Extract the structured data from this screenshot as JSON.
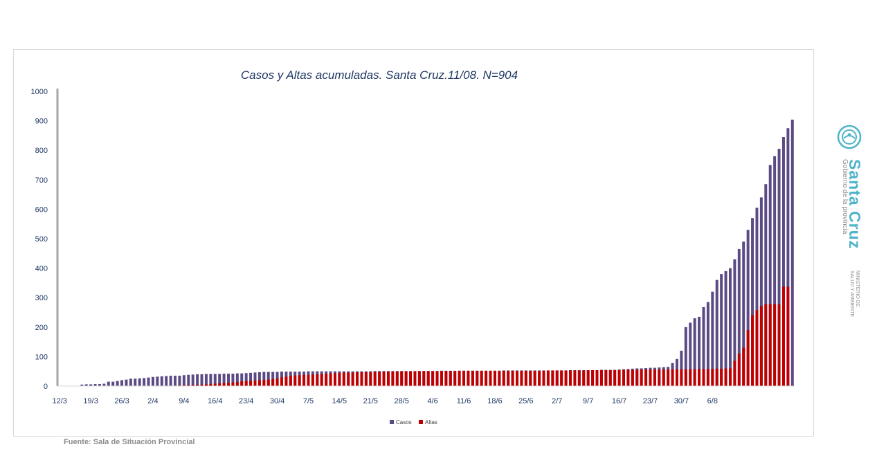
{
  "chart_data": {
    "type": "bar",
    "title": "Casos y Altas acumuladas. Santa Cruz.11/08. N=904",
    "ylim": [
      0,
      1000
    ],
    "yticks": [
      0,
      100,
      200,
      300,
      400,
      500,
      600,
      700,
      800,
      900,
      1000
    ],
    "x_tick_labels": [
      "12/3",
      "19/3",
      "26/3",
      "2/4",
      "9/4",
      "16/4",
      "23/4",
      "30/4",
      "7/5",
      "14/5",
      "21/5",
      "28/5",
      "4/6",
      "11/6",
      "18/6",
      "25/6",
      "2/7",
      "9/7",
      "16/7",
      "23/7",
      "30/7",
      "6/8"
    ],
    "first_date": "12/3",
    "last_date": "11/8",
    "legend_position": "bottom",
    "series": [
      {
        "name": "Casos",
        "color": "#5b4a84",
        "values": [
          1,
          1,
          1,
          1,
          1,
          5,
          6,
          6,
          7,
          7,
          8,
          15,
          15,
          17,
          20,
          22,
          25,
          25,
          26,
          27,
          29,
          31,
          32,
          33,
          34,
          35,
          35,
          35,
          37,
          38,
          39,
          40,
          40,
          41,
          41,
          41,
          41,
          42,
          42,
          42,
          43,
          43,
          44,
          45,
          46,
          47,
          48,
          48,
          48,
          48,
          49,
          49,
          49,
          49,
          49,
          49,
          50,
          50,
          50,
          50,
          50,
          50,
          50,
          50,
          50,
          50,
          50,
          50,
          50,
          50,
          50,
          51,
          51,
          51,
          51,
          51,
          51,
          51,
          51,
          51,
          51,
          51,
          51,
          51,
          51,
          51,
          52,
          52,
          52,
          52,
          52,
          52,
          52,
          52,
          52,
          52,
          52,
          52,
          52,
          52,
          53,
          53,
          53,
          53,
          53,
          53,
          53,
          53,
          53,
          53,
          53,
          53,
          53,
          53,
          53,
          54,
          54,
          54,
          54,
          54,
          54,
          54,
          55,
          55,
          55,
          55,
          56,
          57,
          58,
          59,
          60,
          60,
          61,
          62,
          62,
          63,
          64,
          65,
          78,
          92,
          120,
          200,
          215,
          230,
          235,
          268,
          285,
          320,
          360,
          380,
          390,
          400,
          430,
          465,
          490,
          530,
          570,
          605,
          640,
          685,
          750,
          780,
          805,
          845,
          875,
          904
        ],
        "note": "Purple daily cumulative bars"
      },
      {
        "name": "Altas",
        "color": "#c00000",
        "values": [
          0,
          0,
          0,
          0,
          0,
          0,
          0,
          0,
          0,
          0,
          0,
          0,
          0,
          0,
          0,
          0,
          0,
          0,
          0,
          0,
          0,
          0,
          0,
          0,
          0,
          0,
          1,
          2,
          3,
          3,
          4,
          4,
          5,
          6,
          7,
          8,
          9,
          10,
          11,
          12,
          14,
          16,
          17,
          18,
          19,
          20,
          21,
          22,
          24,
          26,
          30,
          32,
          34,
          36,
          37,
          38,
          38,
          39,
          40,
          41,
          42,
          43,
          44,
          45,
          46,
          46,
          46,
          47,
          47,
          47,
          48,
          48,
          48,
          49,
          49,
          49,
          50,
          50,
          50,
          50,
          50,
          51,
          51,
          51,
          51,
          51,
          51,
          51,
          51,
          51,
          52,
          52,
          52,
          52,
          52,
          52,
          52,
          52,
          52,
          52,
          52,
          52,
          52,
          52,
          52,
          52,
          52,
          52,
          52,
          52,
          53,
          53,
          53,
          53,
          53,
          53,
          53,
          53,
          53,
          54,
          54,
          54,
          54,
          54,
          54,
          54,
          55,
          55,
          55,
          55,
          55,
          56,
          56,
          56,
          56,
          56,
          56,
          56,
          57,
          57,
          57,
          57,
          57,
          57,
          58,
          58,
          58,
          58,
          59,
          59,
          60,
          60,
          85,
          110,
          130,
          190,
          240,
          258,
          272,
          278,
          278,
          278,
          278,
          337,
          337
        ]
      }
    ]
  },
  "source_note": "Fuente: Sala de Situación Provincial",
  "brand": {
    "name": "Santa Cruz",
    "subtitle": "Gobierno de la provincia",
    "ministry_line1": "MINISTERIO DE",
    "ministry_line2": "SALUD Y AMBIENTE",
    "accent_color": "#4fb3c9"
  }
}
